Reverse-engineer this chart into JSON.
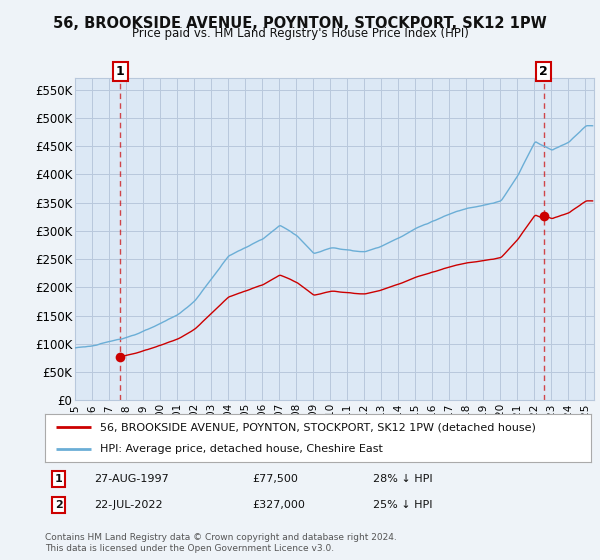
{
  "title": "56, BROOKSIDE AVENUE, POYNTON, STOCKPORT, SK12 1PW",
  "subtitle": "Price paid vs. HM Land Registry's House Price Index (HPI)",
  "ylabel_ticks": [
    "£0",
    "£50K",
    "£100K",
    "£150K",
    "£200K",
    "£250K",
    "£300K",
    "£350K",
    "£400K",
    "£450K",
    "£500K",
    "£550K"
  ],
  "ytick_values": [
    0,
    50000,
    100000,
    150000,
    200000,
    250000,
    300000,
    350000,
    400000,
    450000,
    500000,
    550000
  ],
  "ylim": [
    0,
    570000
  ],
  "xlim_start": 1995.0,
  "xlim_end": 2025.5,
  "hpi_color": "#6baed6",
  "price_color": "#cc0000",
  "sale1_x": 1997.65,
  "sale1_y": 77500,
  "sale1_label": "1",
  "sale1_date": "27-AUG-1997",
  "sale1_price": "£77,500",
  "sale1_hpi": "28% ↓ HPI",
  "sale2_x": 2022.55,
  "sale2_y": 327000,
  "sale2_label": "2",
  "sale2_date": "22-JUL-2022",
  "sale2_price": "£327,000",
  "sale2_hpi": "25% ↓ HPI",
  "legend_line1": "56, BROOKSIDE AVENUE, POYNTON, STOCKPORT, SK12 1PW (detached house)",
  "legend_line2": "HPI: Average price, detached house, Cheshire East",
  "footnote": "Contains HM Land Registry data © Crown copyright and database right 2024.\nThis data is licensed under the Open Government Licence v3.0.",
  "bg_color": "#eef3f8",
  "plot_bg_color": "#dce8f5",
  "grid_color": "#b8c8dc"
}
